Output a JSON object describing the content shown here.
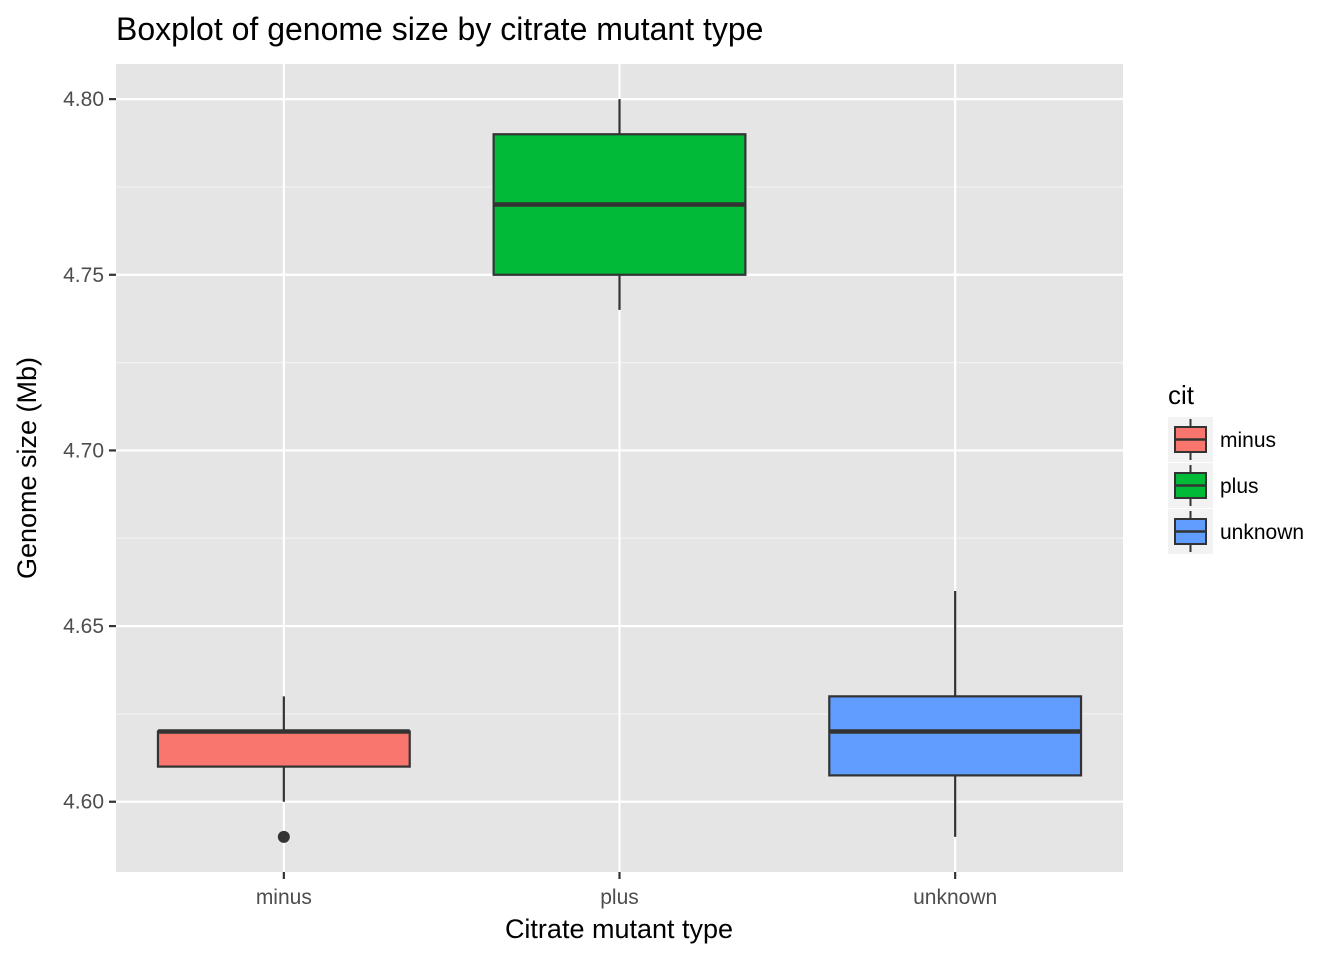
{
  "chart_data": {
    "type": "boxplot",
    "title": "Boxplot of genome size by citrate mutant type",
    "xlabel": "Citrate mutant type",
    "ylabel": "Genome size (Mb)",
    "ylim": [
      4.58,
      4.81
    ],
    "yticks": [
      "4.60",
      "4.65",
      "4.70",
      "4.75",
      "4.80"
    ],
    "yticks_values": [
      4.6,
      4.65,
      4.7,
      4.75,
      4.8
    ],
    "grid": true,
    "legend": {
      "title": "cit",
      "placement": "right"
    },
    "categories": [
      "minus",
      "plus",
      "unknown"
    ],
    "series": [
      {
        "name": "minus",
        "color": "#F8766D",
        "min": 4.6,
        "q1": 4.61,
        "median": 4.62,
        "q3": 4.62,
        "max": 4.63,
        "outliers": [
          4.59
        ]
      },
      {
        "name": "plus",
        "color": "#00BA38",
        "min": 4.74,
        "q1": 4.75,
        "median": 4.77,
        "q3": 4.79,
        "max": 4.8,
        "outliers": []
      },
      {
        "name": "unknown",
        "color": "#619CFF",
        "min": 4.59,
        "q1": 4.6075,
        "median": 4.62,
        "q3": 4.63,
        "max": 4.66,
        "outliers": []
      }
    ]
  }
}
